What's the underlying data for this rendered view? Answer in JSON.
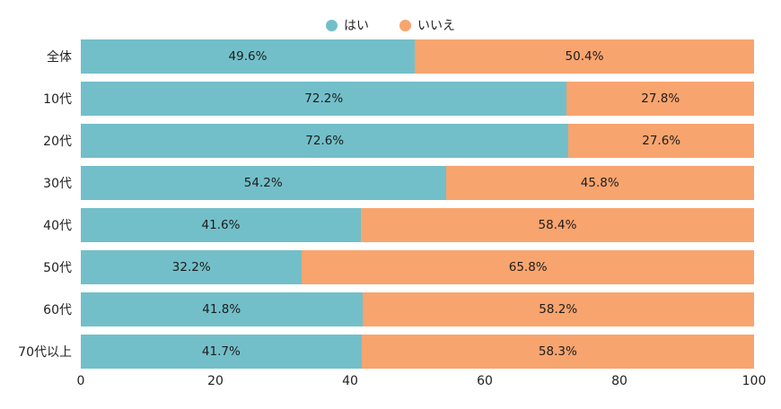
{
  "chart_data": {
    "type": "bar",
    "orientation": "horizontal",
    "stacked": true,
    "categories": [
      "全体",
      "10代",
      "20代",
      "30代",
      "40代",
      "50代",
      "60代",
      "70代以上"
    ],
    "series": [
      {
        "name": "はい",
        "color": "#72bfc9",
        "values": [
          49.6,
          72.2,
          72.6,
          54.2,
          41.6,
          32.2,
          41.8,
          41.7
        ],
        "labels": [
          "49.6%",
          "72.2%",
          "72.6%",
          "54.2%",
          "41.6%",
          "32.2%",
          "41.8%",
          "41.7%"
        ]
      },
      {
        "name": "いいえ",
        "color": "#f8a46e",
        "values": [
          50.4,
          27.8,
          27.6,
          45.8,
          58.4,
          65.8,
          58.2,
          58.3
        ],
        "labels": [
          "50.4%",
          "27.8%",
          "27.6%",
          "45.8%",
          "58.4%",
          "65.8%",
          "58.2%",
          "58.3%"
        ]
      }
    ],
    "title": "",
    "xlabel": "",
    "ylabel": "",
    "xlim": [
      0,
      100
    ],
    "x_ticks": [
      "0",
      "20",
      "40",
      "60",
      "80",
      "100"
    ],
    "legend_position": "top-center",
    "grid": false
  }
}
